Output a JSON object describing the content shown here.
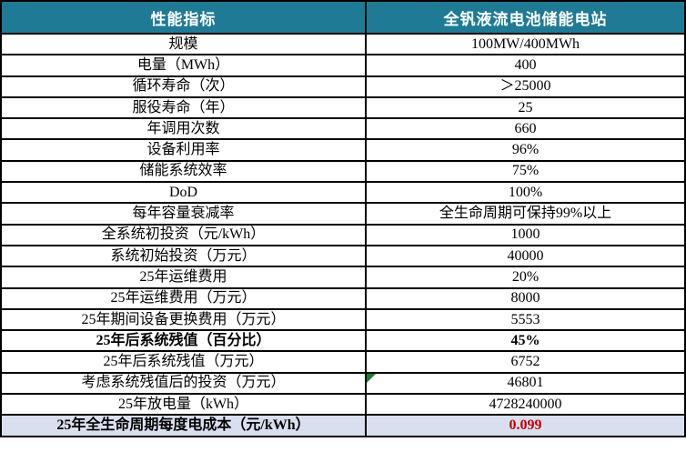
{
  "table": {
    "header": {
      "col1": "性能指标",
      "col2": "全钒液流电池储能电站"
    },
    "rows": [
      {
        "label": "规模",
        "value": "100MW/400MWh"
      },
      {
        "label": "电量（MWh）",
        "value": "400"
      },
      {
        "label": "循环寿命（次）",
        "value": "＞25000"
      },
      {
        "label": "服役寿命（年）",
        "value": "25"
      },
      {
        "label": "年调用次数",
        "value": "660"
      },
      {
        "label": "设备利用率",
        "value": "96%"
      },
      {
        "label": "储能系统效率",
        "value": "75%"
      },
      {
        "label": "DoD",
        "value": "100%"
      },
      {
        "label": "每年容量衰减率",
        "value": "全生命周期可保持99%以上"
      },
      {
        "label": "全系统初投资（元/kWh）",
        "value": "1000"
      },
      {
        "label": "系统初始投资（万元）",
        "value": "40000"
      },
      {
        "label": "25年运维费用",
        "value": "20%"
      },
      {
        "label": "25年运维费用（万元）",
        "value": "8000"
      },
      {
        "label": "25年期间设备更换费用（万元）",
        "value": "5553"
      },
      {
        "label": "25年后系统残值（百分比）",
        "value": "45%",
        "bold": true
      },
      {
        "label": "25年后系统残值（万元）",
        "value": "6752"
      },
      {
        "label": "考虑系统残值后的投资（万元）",
        "value": "46801",
        "comment_marker": true
      },
      {
        "label": "25年放电量（kWh）",
        "value": "4728240000"
      },
      {
        "label": "25年全生命周期每度电成本（元/kWh）",
        "value": "0.099",
        "highlight": true
      }
    ],
    "colors": {
      "header_bg": "#1F7B95",
      "header_text": "#FFFFFF",
      "border": "#000000",
      "highlight_bg": "#D9DFEF",
      "highlight_value": "#C00000",
      "marker_green": "#1E7B34"
    },
    "icons": {
      "comment_marker": "corner-triangle-icon"
    }
  }
}
